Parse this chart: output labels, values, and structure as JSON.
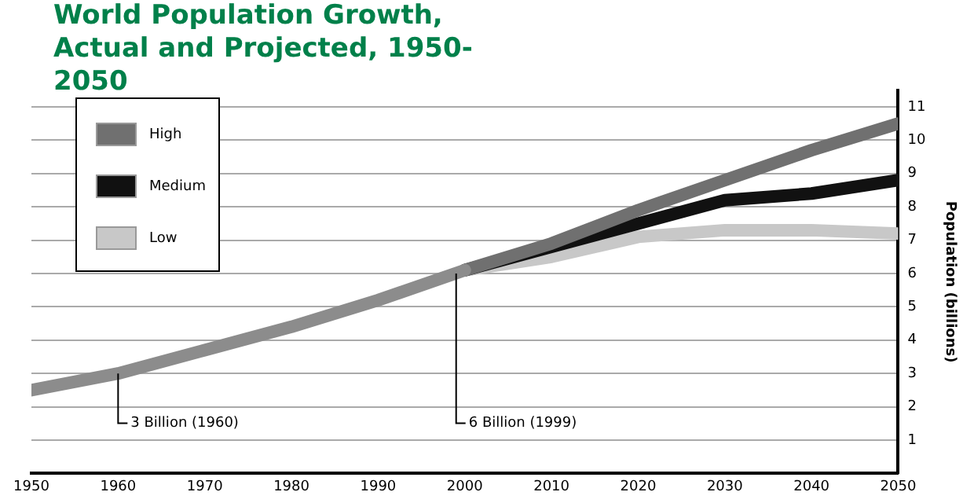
{
  "chart_data": {
    "type": "line",
    "title": "World Population Growth, Actual and Projected, 1950-2050",
    "ylabel": "Population (billions)",
    "series": [
      {
        "color": "#8c8c8c",
        "x": [
          1950,
          1960,
          1970,
          1980,
          1990,
          2000
        ],
        "values": [
          2.5,
          3.0,
          3.7,
          4.4,
          5.2,
          6.1
        ]
      },
      {
        "name": "High",
        "color": "#707070",
        "x": [
          2000,
          2010,
          2020,
          2030,
          2040,
          2050
        ],
        "values": [
          6.1,
          6.9,
          7.9,
          8.8,
          9.7,
          10.5
        ]
      },
      {
        "name": "Medium",
        "color": "#111111",
        "x": [
          2000,
          2010,
          2020,
          2030,
          2040,
          2050
        ],
        "values": [
          6.1,
          6.8,
          7.5,
          8.2,
          8.4,
          8.8
        ]
      },
      {
        "name": "Low",
        "color": "#c8c8c8",
        "x": [
          2000,
          2010,
          2020,
          2030,
          2040,
          2050
        ],
        "values": [
          6.1,
          6.5,
          7.1,
          7.3,
          7.3,
          7.2
        ]
      }
    ],
    "annotations": [
      {
        "text": "3 Billion (1960)",
        "x": 1960,
        "y": 3
      },
      {
        "text": "6 Billion (1999)",
        "x": 1999,
        "y": 6
      }
    ],
    "xlim": [
      1950,
      2050
    ],
    "xticks": [
      1950,
      1960,
      1970,
      1980,
      1990,
      2000,
      2010,
      2020,
      2030,
      2040,
      2050
    ],
    "ylim": [
      0,
      11.5
    ],
    "yticks": [
      1,
      2,
      3,
      4,
      5,
      6,
      7,
      8,
      9,
      10,
      11
    ],
    "grid": "y",
    "legend": "top left",
    "marker": "none",
    "line_style": "solid"
  }
}
